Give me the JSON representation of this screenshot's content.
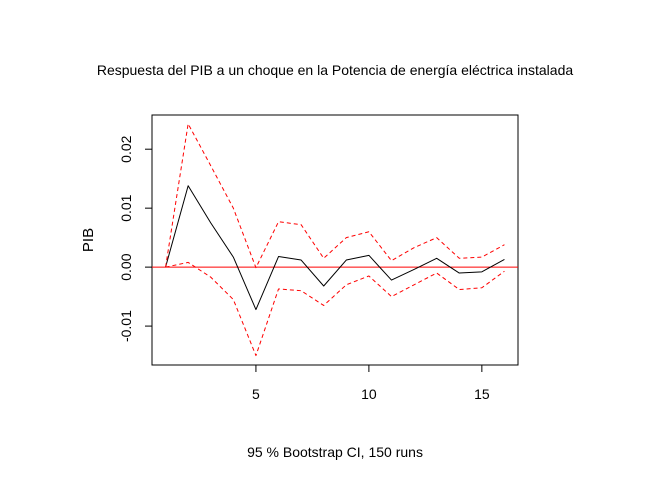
{
  "chart_data": {
    "type": "line",
    "title": "Respuesta del PIB a un choque en la Potencia de energía eléctrica instalada",
    "ylabel": "PIB",
    "xlabel": "95 % Bootstrap CI,  150 runs",
    "xlim": [
      0.4,
      16.6
    ],
    "ylim": [
      -0.0166,
      0.0258
    ],
    "x_ticks": [
      5,
      10,
      15
    ],
    "x_tick_labels": [
      "5",
      "10",
      "15"
    ],
    "y_ticks": [
      -0.01,
      0.0,
      0.01,
      0.02
    ],
    "y_tick_labels": [
      "-0.01",
      "0.00",
      "0.01",
      "0.02"
    ],
    "x": [
      1,
      2,
      3,
      4,
      5,
      6,
      7,
      8,
      9,
      10,
      11,
      12,
      13,
      14,
      15,
      16
    ],
    "series": [
      {
        "role": "irf",
        "color": "#000000",
        "dash": "solid",
        "values": [
          0.0,
          0.0138,
          0.0075,
          0.0017,
          -0.0072,
          0.0018,
          0.0012,
          -0.0032,
          0.0012,
          0.002,
          -0.0022,
          -0.0004,
          0.0015,
          -0.001,
          -0.0008,
          0.0013
        ]
      },
      {
        "role": "upper",
        "color": "#ff0000",
        "dash": "dashed",
        "values": [
          0.0,
          0.0243,
          0.0172,
          0.01,
          -0.0001,
          0.0077,
          0.0072,
          0.0015,
          0.005,
          0.006,
          0.0011,
          0.0033,
          0.005,
          0.0015,
          0.0017,
          0.0038
        ]
      },
      {
        "role": "lower",
        "color": "#ff0000",
        "dash": "dashed",
        "values": [
          0.0,
          0.0008,
          -0.0017,
          -0.0055,
          -0.015,
          -0.0037,
          -0.004,
          -0.0065,
          -0.003,
          -0.0015,
          -0.005,
          -0.003,
          -0.001,
          -0.0038,
          -0.0035,
          -0.0007
        ]
      }
    ],
    "zero_line": {
      "value": 0,
      "color": "#ff0000"
    },
    "grid": false,
    "legend": "none"
  }
}
